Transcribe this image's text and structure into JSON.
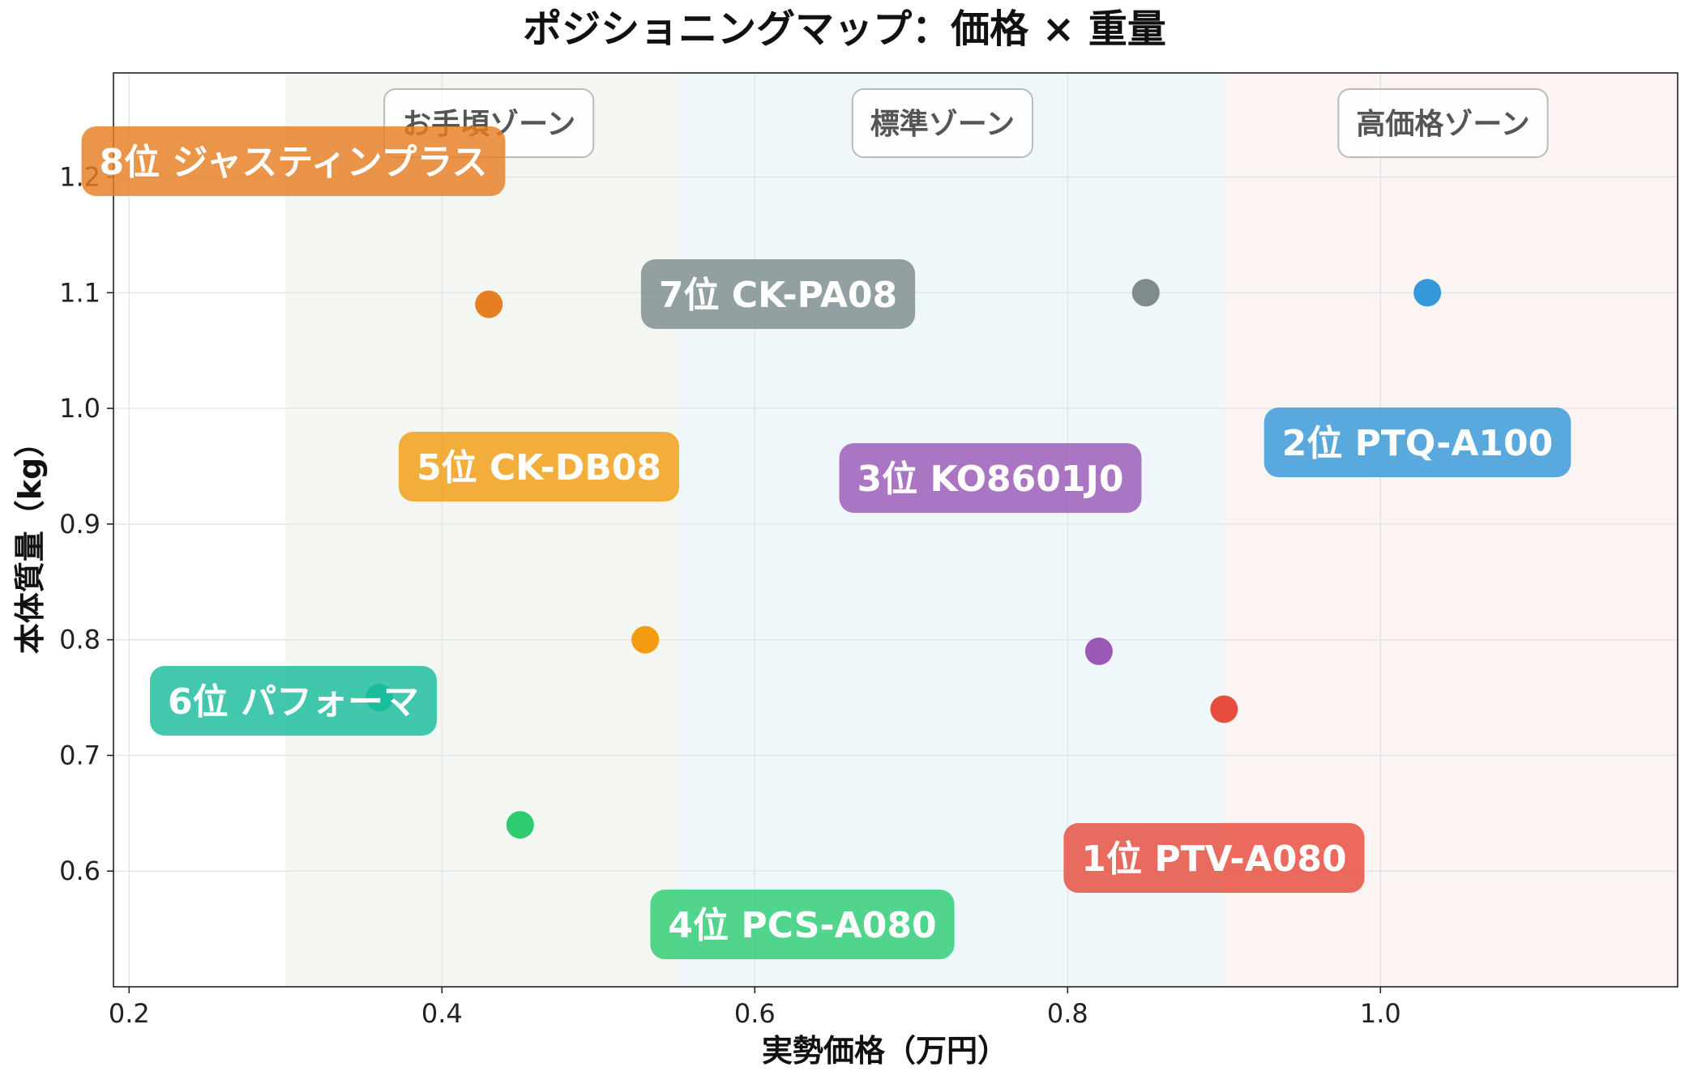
{
  "chart_data": {
    "type": "scatter",
    "title": "ポジショニングマップ：価格 × 重量",
    "xlabel": "実勢価格（万円）",
    "ylabel": "本体質量（kg）",
    "xlim": [
      0.19,
      1.19
    ],
    "ylim": [
      0.5,
      1.29
    ],
    "xticks": [
      0.2,
      0.4,
      0.6,
      0.8,
      1.0
    ],
    "xtick_labels": [
      "0.2",
      "0.4",
      "0.6",
      "0.8",
      "1.0"
    ],
    "yticks": [
      0.6,
      0.7,
      0.8,
      0.9,
      1.0,
      1.1,
      1.2
    ],
    "ytick_labels": [
      "0.6",
      "0.7",
      "0.8",
      "0.9",
      "1.0",
      "1.1",
      "1.2"
    ],
    "grid": true,
    "zones": [
      {
        "label": "お手頃ゾーン",
        "x_range": [
          0.3,
          0.55
        ],
        "color": "#f4f7f1"
      },
      {
        "label": "標準ゾーン",
        "x_range": [
          0.55,
          0.9
        ],
        "color": "#eff7fb"
      },
      {
        "label": "高価格ゾーン",
        "x_range": [
          0.9,
          1.19
        ],
        "color": "#fcf3f3"
      }
    ],
    "points": [
      {
        "label": "1位 PTV-A080",
        "x": 0.9,
        "y": 0.74,
        "color": "#e74c3c"
      },
      {
        "label": "2位 PTQ-A100",
        "x": 1.03,
        "y": 1.1,
        "color": "#3498db"
      },
      {
        "label": "3位 KO8601J0",
        "x": 0.82,
        "y": 0.79,
        "color": "#9b59b6"
      },
      {
        "label": "4位 PCS-A080",
        "x": 0.45,
        "y": 0.64,
        "color": "#2ecc71"
      },
      {
        "label": "5位 CK-DB08",
        "x": 0.53,
        "y": 0.8,
        "color": "#f39c12"
      },
      {
        "label": "6位 パフォーマ",
        "x": 0.36,
        "y": 0.75,
        "color": "#1abc9c"
      },
      {
        "label": "7位 CK-PA08",
        "x": 0.85,
        "y": 1.1,
        "color": "#7f8c8d"
      },
      {
        "label": "8位 ジャスティンプラス",
        "x": 0.43,
        "y": 1.09,
        "color": "#e67e22"
      }
    ]
  }
}
